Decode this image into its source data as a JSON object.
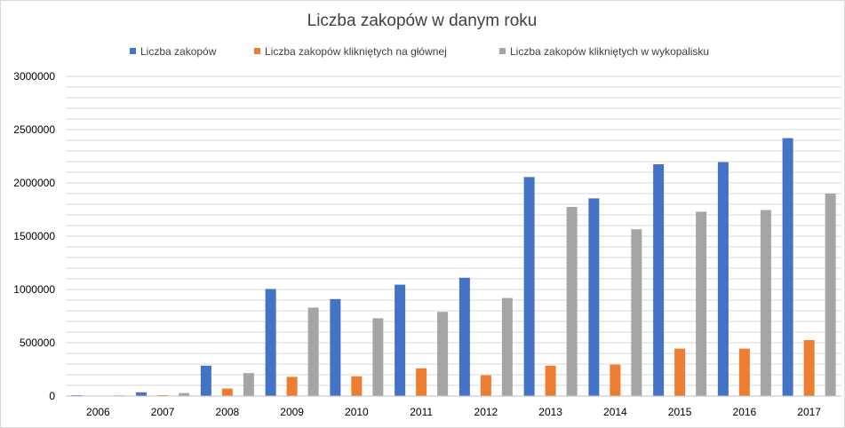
{
  "chart_data": {
    "type": "bar",
    "title": "Liczba zakopów w danym roku",
    "xlabel": "",
    "ylabel": "",
    "categories": [
      "2006",
      "2007",
      "2008",
      "2009",
      "2010",
      "2011",
      "2012",
      "2013",
      "2014",
      "2015",
      "2016",
      "2017"
    ],
    "series": [
      {
        "name": "Liczba zakopów",
        "color": "#4472C4",
        "values": [
          8000,
          35000,
          285000,
          1005000,
          910000,
          1045000,
          1110000,
          2055000,
          1855000,
          2175000,
          2195000,
          2420000
        ]
      },
      {
        "name": "Liczba zakopów klikniętych na głównej",
        "color": "#ED7D31",
        "values": [
          4000,
          8000,
          70000,
          180000,
          185000,
          260000,
          195000,
          285000,
          295000,
          445000,
          445000,
          525000
        ]
      },
      {
        "name": "Liczba zakopów klikniętych w wykopalisku",
        "color": "#A5A5A5",
        "values": [
          6000,
          28000,
          215000,
          830000,
          730000,
          790000,
          920000,
          1775000,
          1565000,
          1730000,
          1745000,
          1900000
        ]
      }
    ],
    "ylim": [
      0,
      3000000
    ],
    "yticks": [
      "0",
      "500000",
      "1000000",
      "1500000",
      "2000000",
      "2500000",
      "3000000"
    ],
    "grid": true,
    "legend": "top"
  }
}
